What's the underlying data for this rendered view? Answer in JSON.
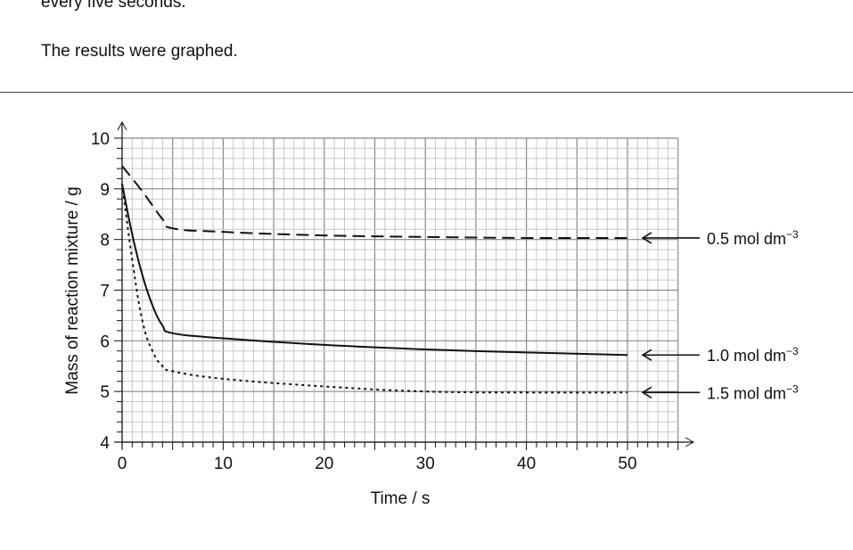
{
  "text": {
    "line1": "every five seconds.",
    "line2": "The results were graphed."
  },
  "chart_data": {
    "type": "line",
    "title": "",
    "xlabel": "Time / s",
    "ylabel": "Mass of reaction mixture / g",
    "xlim": [
      0,
      55
    ],
    "ylim": [
      4,
      10
    ],
    "xticks": [
      0,
      10,
      20,
      30,
      40,
      50
    ],
    "yticks": [
      4,
      5,
      6,
      7,
      8,
      9,
      10
    ],
    "grid": true,
    "grid_minor_x": 1,
    "grid_minor_y": 0.2,
    "series": [
      {
        "name": "0.5 mol dm⁻³",
        "style": "dashed",
        "x": [
          0,
          2,
          4,
          5,
          10,
          20,
          30,
          40,
          50
        ],
        "y": [
          9.45,
          8.95,
          8.4,
          8.22,
          8.15,
          8.08,
          8.05,
          8.03,
          8.03
        ]
      },
      {
        "name": "1.0 mol dm⁻³",
        "style": "solid",
        "x": [
          0,
          1,
          2,
          3,
          4,
          5,
          10,
          20,
          30,
          40,
          50
        ],
        "y": [
          9.1,
          8.1,
          7.3,
          6.7,
          6.3,
          6.15,
          6.05,
          5.92,
          5.83,
          5.77,
          5.72
        ]
      },
      {
        "name": "1.5 mol dm⁻³",
        "style": "dotted",
        "x": [
          0,
          1,
          2,
          3,
          4,
          5,
          10,
          20,
          30,
          40,
          50
        ],
        "y": [
          9.1,
          7.6,
          6.4,
          5.8,
          5.5,
          5.4,
          5.25,
          5.1,
          5.0,
          4.98,
          4.98
        ]
      }
    ],
    "labels": [
      {
        "text": "0.5 mol dm",
        "sup": "−3",
        "y": 8.03
      },
      {
        "text": "1.0 mol dm",
        "sup": "−3",
        "y": 5.72
      },
      {
        "text": "1.5 mol dm",
        "sup": "−3",
        "y": 4.98
      }
    ]
  }
}
